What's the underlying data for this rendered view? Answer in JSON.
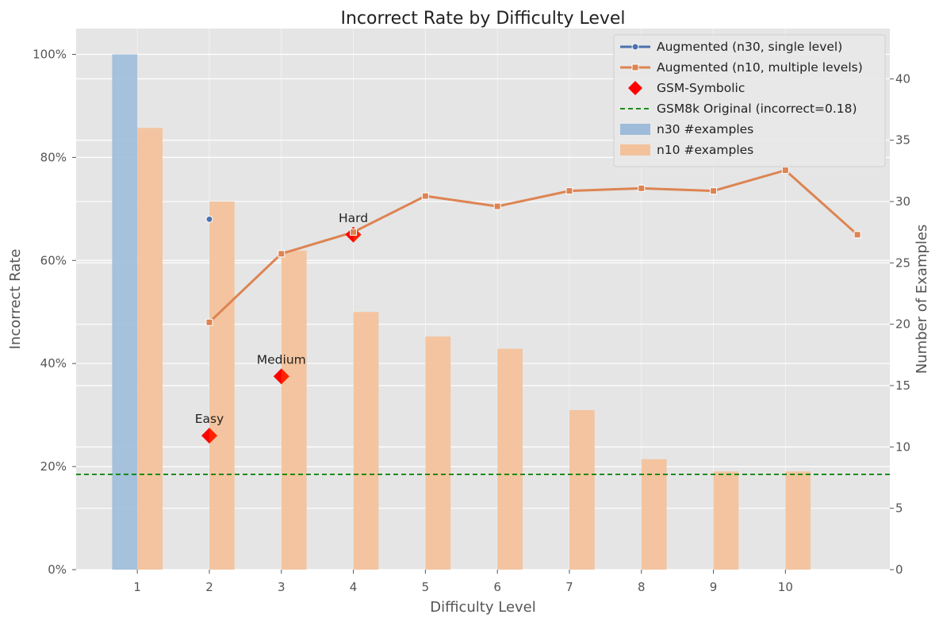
{
  "chart_data": {
    "type": "bar",
    "title": "Incorrect Rate by Difficulty Level",
    "xlabel": "Difficulty Level",
    "ylabel": "Incorrect Rate",
    "y2label": "Number of Examples",
    "x_ticks": [
      1,
      2,
      3,
      4,
      5,
      6,
      7,
      8,
      9,
      10
    ],
    "xlim": [
      0.15,
      11.45
    ],
    "ylim": [
      0,
      1.05
    ],
    "y_ticks": [
      0,
      0.2,
      0.4,
      0.6,
      0.8,
      1.0
    ],
    "y_tick_labels": [
      "0%",
      "20%",
      "40%",
      "60%",
      "80%",
      "100%"
    ],
    "y2lim": [
      0,
      44.1
    ],
    "y2_ticks": [
      0,
      5,
      10,
      15,
      20,
      25,
      30,
      35,
      40
    ],
    "grid": true,
    "legend_position": "top-right",
    "series": [
      {
        "name": "Augmented (n30, single level)",
        "kind": "line",
        "color": "#4c72b0",
        "marker": "circle",
        "x": [
          2
        ],
        "y": [
          0.68
        ]
      },
      {
        "name": "Augmented (n10, multiple levels)",
        "kind": "line",
        "color": "#dd8452",
        "marker": "square",
        "x": [
          2,
          3,
          4,
          5,
          6,
          7,
          8,
          9,
          10,
          11
        ],
        "y": [
          0.48,
          0.613,
          0.655,
          0.725,
          0.705,
          0.735,
          0.74,
          0.735,
          0.775,
          0.65
        ]
      },
      {
        "name": "GSM-Symbolic",
        "kind": "scatter",
        "color": "#ff0000",
        "marker": "diamond",
        "x": [
          2,
          3,
          4
        ],
        "y": [
          0.26,
          0.375,
          0.65
        ],
        "labels": [
          "Easy",
          "Medium",
          "Hard"
        ]
      },
      {
        "name": "GSM8k Original (incorrect=0.18)",
        "kind": "hline",
        "color": "#008000",
        "y": 0.185
      },
      {
        "name": "n30 #examples",
        "kind": "bar",
        "axis": "right",
        "color": "#9ebcda",
        "x": [
          1
        ],
        "values": [
          42
        ]
      },
      {
        "name": "n10 #examples",
        "kind": "bar",
        "axis": "right",
        "color": "#f3c29b",
        "x": [
          1,
          2,
          3,
          4,
          5,
          6,
          7,
          8,
          9,
          10
        ],
        "values": [
          36,
          30,
          26,
          21,
          19,
          18,
          13,
          9,
          8,
          8
        ]
      }
    ]
  }
}
